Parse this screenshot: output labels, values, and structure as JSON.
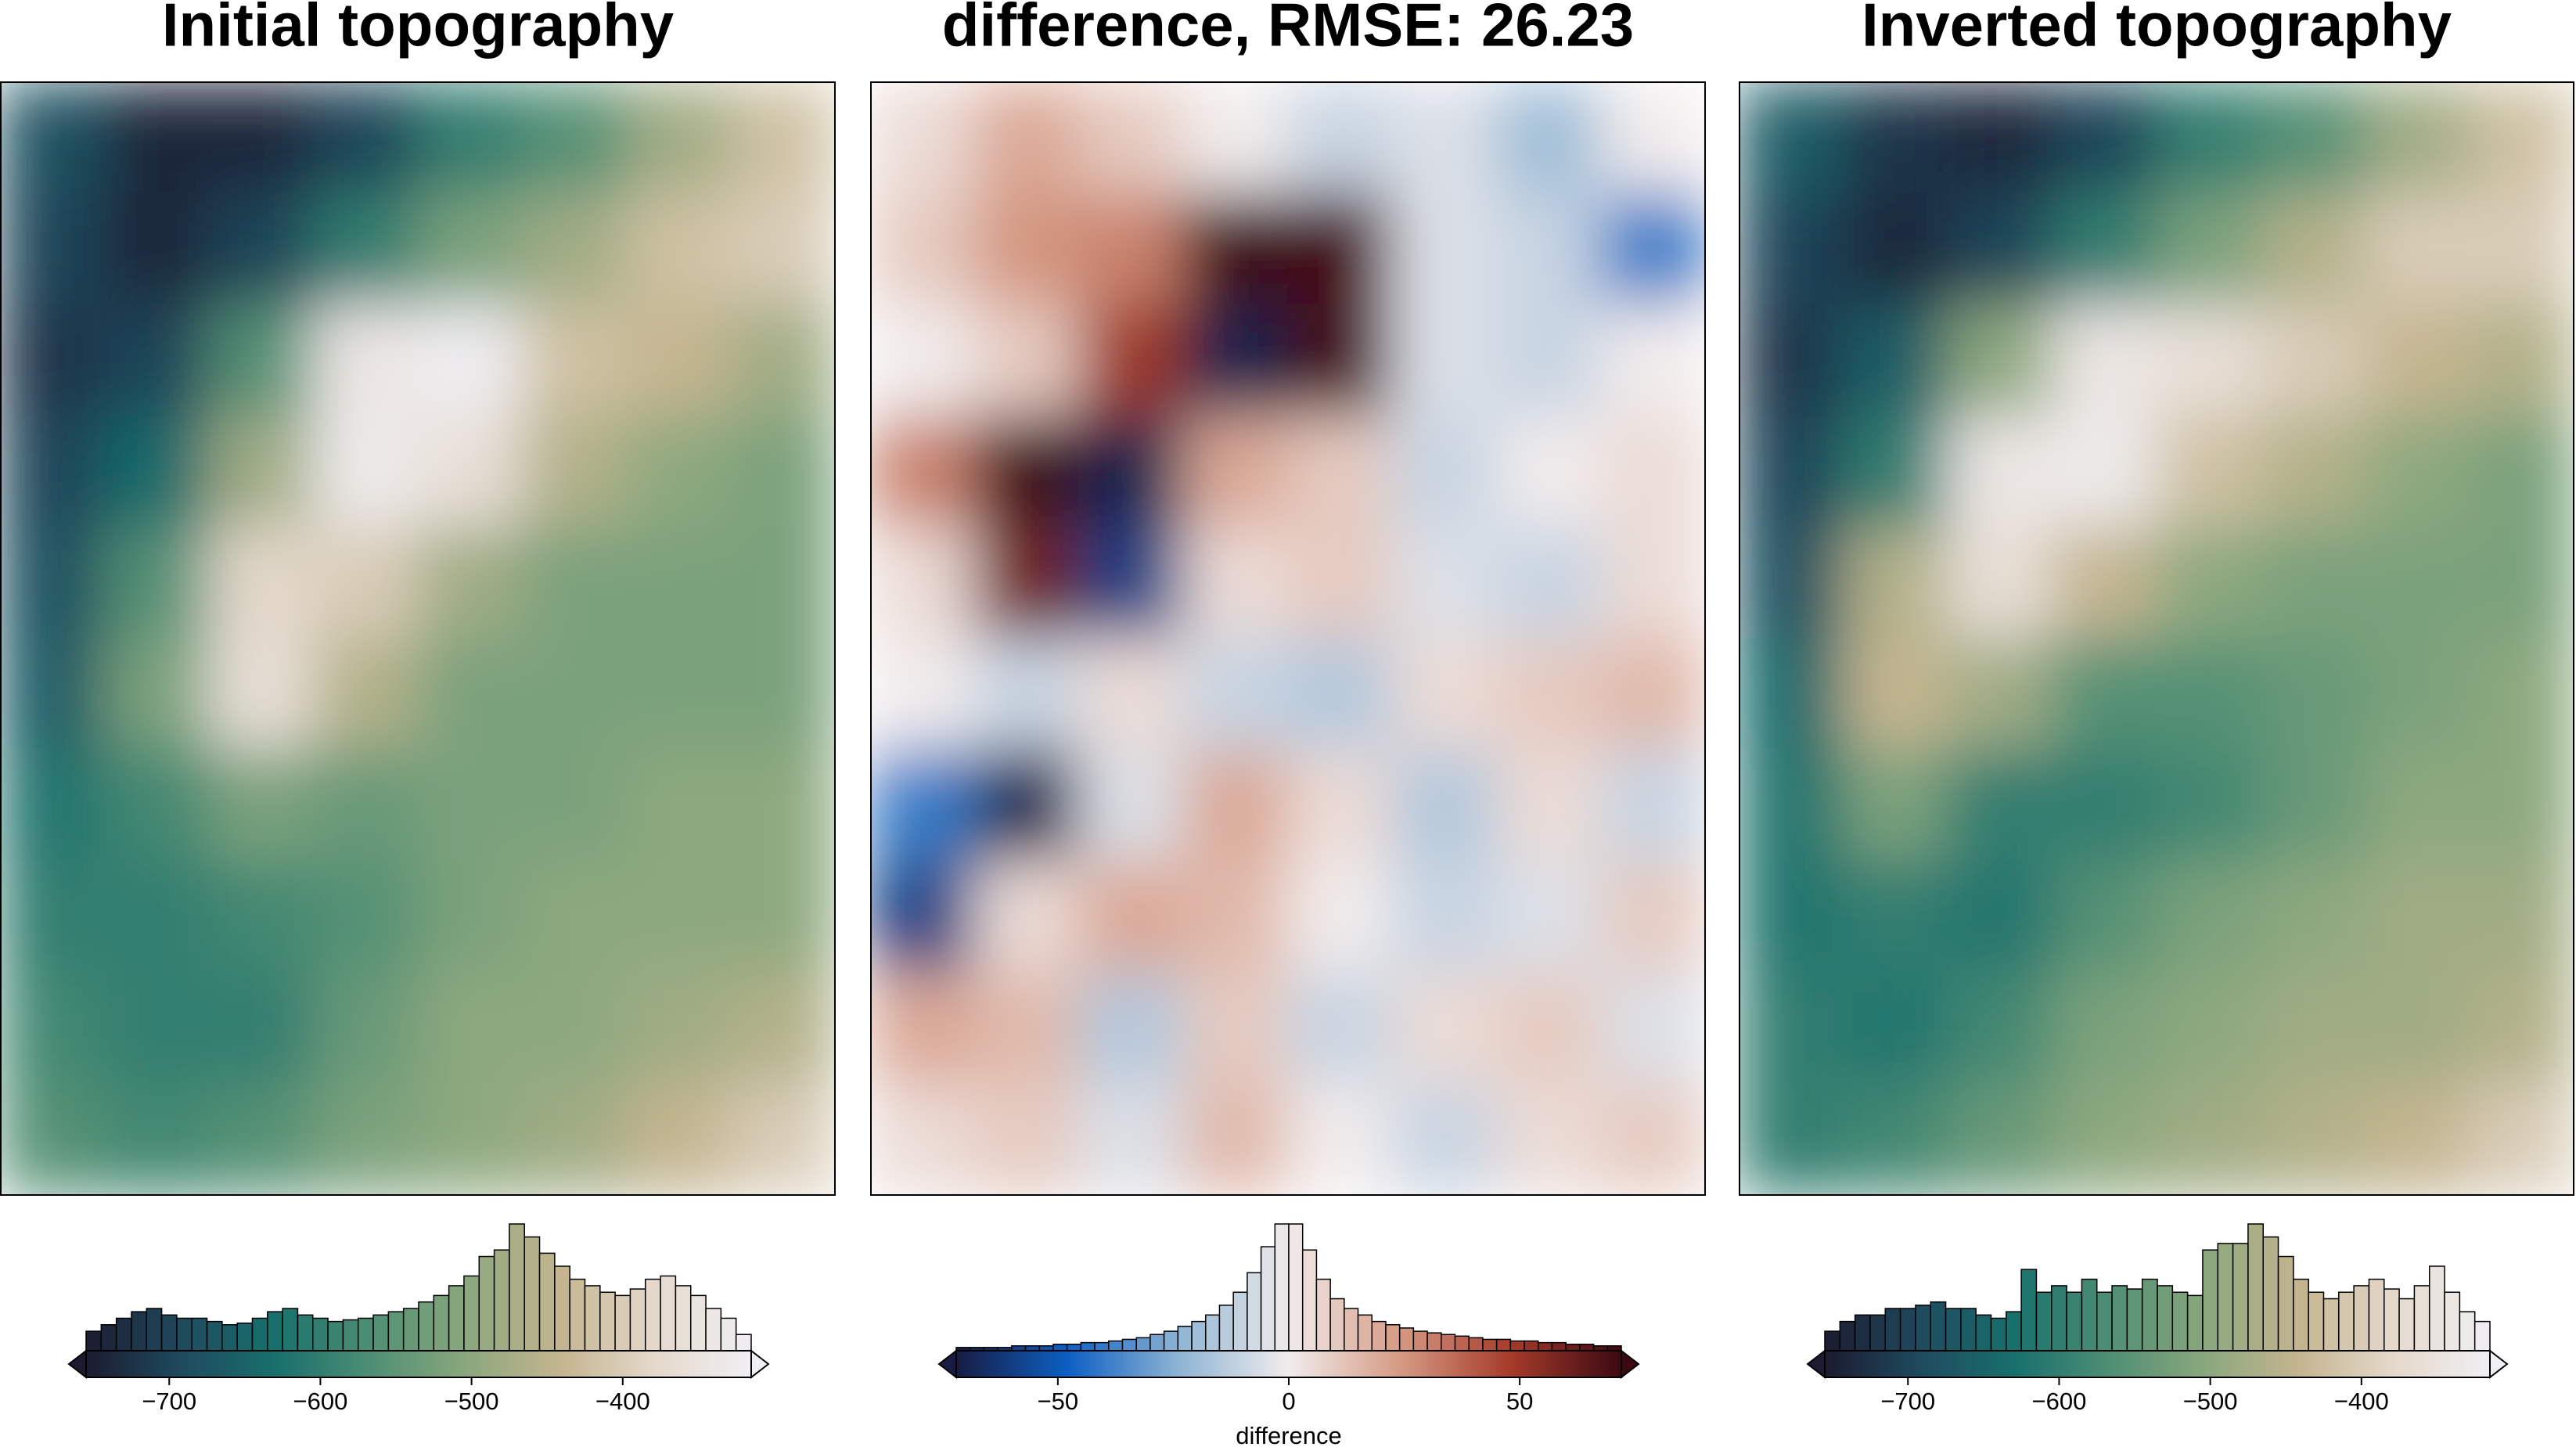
{
  "chart_data": [
    {
      "type": "heatmap",
      "title": "Initial topography",
      "colormap": [
        "#1c1b30",
        "#1f4a5e",
        "#18706d",
        "#4e8f74",
        "#8aa77d",
        "#c4b58f",
        "#e5d9cc",
        "#f0eff4"
      ],
      "zlim": [
        -755,
        -315
      ],
      "z": [
        [
          -680,
          -740,
          -740,
          -700,
          -600,
          -560,
          -480,
          -420
        ],
        [
          -700,
          -740,
          -700,
          -600,
          -520,
          -480,
          -420,
          -400
        ],
        [
          -720,
          -700,
          -560,
          -340,
          -320,
          -420,
          -440,
          -480
        ],
        [
          -700,
          -640,
          -480,
          -330,
          -360,
          -460,
          -500,
          -520
        ],
        [
          -680,
          -560,
          -380,
          -400,
          -480,
          -520,
          -520,
          -520
        ],
        [
          -660,
          -520,
          -360,
          -460,
          -520,
          -520,
          -520,
          -520
        ],
        [
          -620,
          -580,
          -520,
          -540,
          -520,
          -520,
          -500,
          -500
        ],
        [
          -600,
          -600,
          -580,
          -560,
          -520,
          -500,
          -500,
          -500
        ],
        [
          -580,
          -600,
          -600,
          -540,
          -500,
          -500,
          -480,
          -460
        ],
        [
          -560,
          -580,
          -560,
          -520,
          -500,
          -480,
          -440,
          -400
        ]
      ],
      "colorbar_ticks": [
        {
          "value": -700,
          "label": "−700"
        },
        {
          "value": -600,
          "label": "−600"
        },
        {
          "value": -500,
          "label": "−500"
        },
        {
          "value": -400,
          "label": "−400"
        }
      ],
      "bins": [
        -755,
        -745,
        -735,
        -725,
        -715,
        -705,
        -695,
        -685,
        -675,
        -665,
        -655,
        -645,
        -635,
        -625,
        -615,
        -605,
        -595,
        -585,
        -575,
        -565,
        -555,
        -545,
        -535,
        -525,
        -515,
        -505,
        -495,
        -485,
        -475,
        -465,
        -455,
        -445,
        -435,
        -425,
        -415,
        -405,
        -395,
        -385,
        -375,
        -365,
        -355,
        -345,
        -335,
        -325,
        -315
      ],
      "counts": [
        12,
        16,
        20,
        24,
        26,
        22,
        20,
        20,
        18,
        16,
        17,
        20,
        24,
        26,
        22,
        20,
        18,
        19,
        20,
        22,
        24,
        26,
        30,
        34,
        40,
        46,
        58,
        62,
        78,
        70,
        60,
        52,
        44,
        40,
        36,
        34,
        38,
        44,
        46,
        40,
        34,
        26,
        20,
        10
      ]
    },
    {
      "type": "heatmap",
      "title": "difference, RMSE: 26.23",
      "colormap": [
        "#181c43",
        "#0c5fc3",
        "#8db3d3",
        "#f1ecec",
        "#d59a83",
        "#a63b2a",
        "#3c0912"
      ],
      "zlim": [
        -72,
        72
      ],
      "z": [
        [
          5,
          20,
          10,
          0,
          -10,
          -5,
          -20,
          0
        ],
        [
          10,
          25,
          30,
          75,
          70,
          -5,
          -10,
          -40
        ],
        [
          0,
          10,
          50,
          -70,
          70,
          -5,
          -10,
          0
        ],
        [
          30,
          75,
          -70,
          20,
          10,
          -10,
          0,
          5
        ],
        [
          5,
          60,
          -60,
          5,
          10,
          -5,
          -10,
          5
        ],
        [
          0,
          -10,
          5,
          -10,
          -15,
          5,
          10,
          15
        ],
        [
          -40,
          -70,
          -5,
          20,
          5,
          -15,
          5,
          -10
        ],
        [
          -60,
          5,
          20,
          15,
          0,
          -10,
          -5,
          10
        ],
        [
          20,
          15,
          -15,
          10,
          -10,
          5,
          10,
          -5
        ],
        [
          5,
          10,
          -5,
          15,
          0,
          -10,
          5,
          10
        ]
      ],
      "colorbar_ticks": [
        {
          "value": -50,
          "label": "−50"
        },
        0,
        50
      ],
      "colorbar_label": "difference",
      "bins": [
        -72,
        -69,
        -66,
        -63,
        -60,
        -57,
        -54,
        -51,
        -48,
        -45,
        -42,
        -39,
        -36,
        -33,
        -30,
        -27,
        -24,
        -21,
        -18,
        -15,
        -12,
        -9,
        -6,
        -3,
        0,
        3,
        6,
        9,
        12,
        15,
        18,
        21,
        24,
        27,
        30,
        33,
        36,
        39,
        42,
        45,
        48,
        51,
        54,
        57,
        60,
        63,
        66,
        69,
        72
      ],
      "counts": [
        2,
        2,
        2,
        2,
        3,
        3,
        3,
        4,
        4,
        5,
        5,
        6,
        7,
        8,
        10,
        12,
        15,
        18,
        22,
        28,
        36,
        48,
        64,
        78,
        78,
        62,
        44,
        32,
        26,
        22,
        18,
        16,
        14,
        12,
        11,
        10,
        9,
        8,
        7,
        7,
        6,
        6,
        5,
        5,
        4,
        4,
        3,
        3
      ]
    },
    {
      "type": "heatmap",
      "title": "Inverted topography",
      "colormap": [
        "#1c1b30",
        "#1f4a5e",
        "#18706d",
        "#4e8f74",
        "#8aa77d",
        "#c4b58f",
        "#e5d9cc",
        "#f0eff4"
      ],
      "zlim": [
        -755,
        -315
      ],
      "z": [
        [
          -660,
          -720,
          -740,
          -700,
          -600,
          -560,
          -480,
          -420
        ],
        [
          -700,
          -740,
          -700,
          -600,
          -520,
          -460,
          -400,
          -400
        ],
        [
          -720,
          -660,
          -500,
          -340,
          -360,
          -400,
          -440,
          -460
        ],
        [
          -700,
          -600,
          -340,
          -330,
          -420,
          -460,
          -500,
          -520
        ],
        [
          -680,
          -460,
          -360,
          -440,
          -500,
          -520,
          -520,
          -520
        ],
        [
          -640,
          -440,
          -480,
          -560,
          -560,
          -540,
          -520,
          -500
        ],
        [
          -620,
          -520,
          -600,
          -600,
          -580,
          -540,
          -500,
          -500
        ],
        [
          -620,
          -600,
          -620,
          -560,
          -520,
          -500,
          -480,
          -480
        ],
        [
          -600,
          -620,
          -580,
          -520,
          -500,
          -480,
          -480,
          -460
        ],
        [
          -600,
          -580,
          -540,
          -500,
          -480,
          -460,
          -440,
          -400
        ]
      ],
      "colorbar_ticks": [
        {
          "value": -700,
          "label": "−700"
        },
        {
          "value": -600,
          "label": "−600"
        },
        {
          "value": -500,
          "label": "−500"
        },
        {
          "value": -400,
          "label": "−400"
        }
      ],
      "bins": [
        -755,
        -745,
        -735,
        -725,
        -715,
        -705,
        -695,
        -685,
        -675,
        -665,
        -655,
        -645,
        -635,
        -625,
        -615,
        -605,
        -595,
        -585,
        -575,
        -565,
        -555,
        -545,
        -535,
        -525,
        -515,
        -505,
        -495,
        -485,
        -475,
        -465,
        -455,
        -445,
        -435,
        -425,
        -415,
        -405,
        -395,
        -385,
        -375,
        -365,
        -355,
        -345,
        -335,
        -325,
        -315
      ],
      "counts": [
        12,
        18,
        22,
        22,
        26,
        26,
        28,
        30,
        26,
        26,
        22,
        20,
        24,
        50,
        36,
        40,
        36,
        44,
        36,
        40,
        38,
        44,
        40,
        36,
        34,
        62,
        66,
        66,
        78,
        70,
        58,
        44,
        36,
        32,
        36,
        40,
        44,
        38,
        32,
        40,
        52,
        36,
        24,
        18
      ]
    }
  ]
}
